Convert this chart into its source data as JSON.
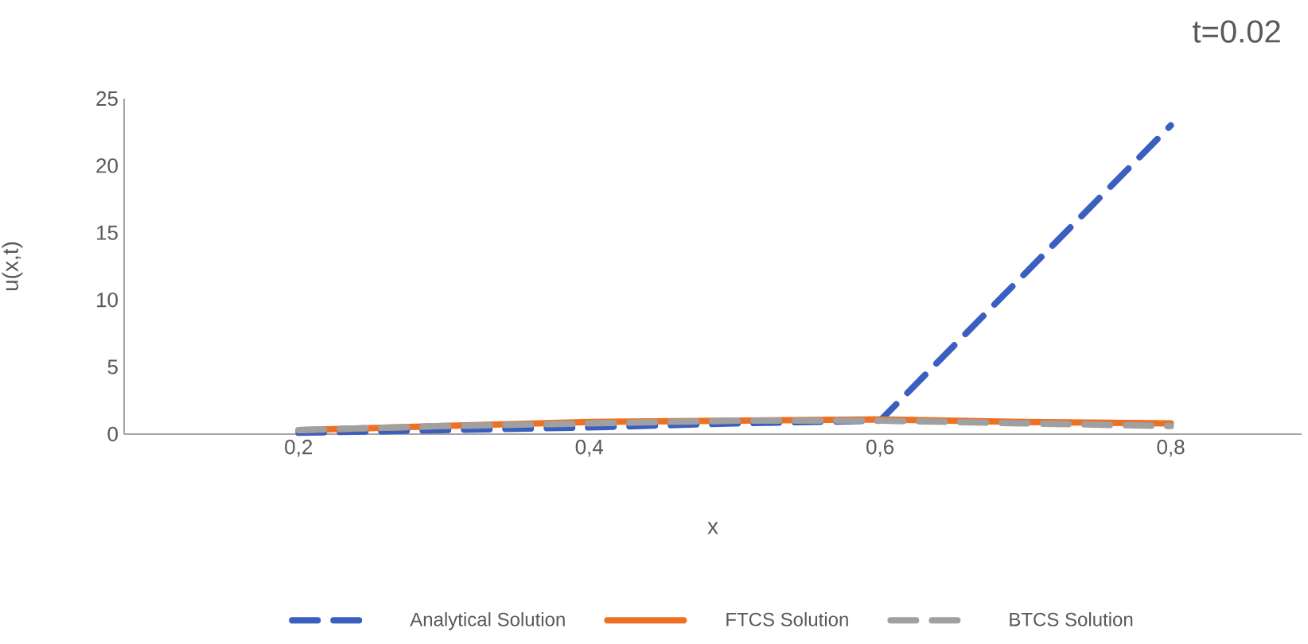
{
  "chart_data": {
    "type": "line",
    "title": "t=0.02",
    "xlabel": "x",
    "ylabel": "u(x,t)",
    "xlim": [
      0.08,
      0.89
    ],
    "ylim": [
      0,
      25
    ],
    "xticks": [
      {
        "value": 0.2,
        "label": "0,2"
      },
      {
        "value": 0.4,
        "label": "0,4"
      },
      {
        "value": 0.6,
        "label": "0,6"
      },
      {
        "value": 0.8,
        "label": "0,8"
      }
    ],
    "yticks": [
      0,
      5,
      10,
      15,
      20,
      25
    ],
    "x": [
      0.2,
      0.3,
      0.4,
      0.5,
      0.6,
      0.7,
      0.8
    ],
    "series": [
      {
        "name": "Analytical Solution",
        "color": "#3a5fc0",
        "line_style": "dashed",
        "values": [
          0.1,
          0.3,
          0.5,
          0.8,
          1.0,
          12,
          23
        ]
      },
      {
        "name": "FTCS Solution",
        "color": "#ed7125",
        "line_style": "solid",
        "values": [
          0.3,
          0.6,
          0.9,
          1.0,
          1.1,
          0.9,
          0.8
        ]
      },
      {
        "name": "BTCS Solution",
        "color": "#a0a0a0",
        "line_style": "dashed",
        "values": [
          0.3,
          0.6,
          0.8,
          1.0,
          1.0,
          0.8,
          0.6
        ]
      }
    ],
    "grid": false,
    "legend": "bottom"
  }
}
